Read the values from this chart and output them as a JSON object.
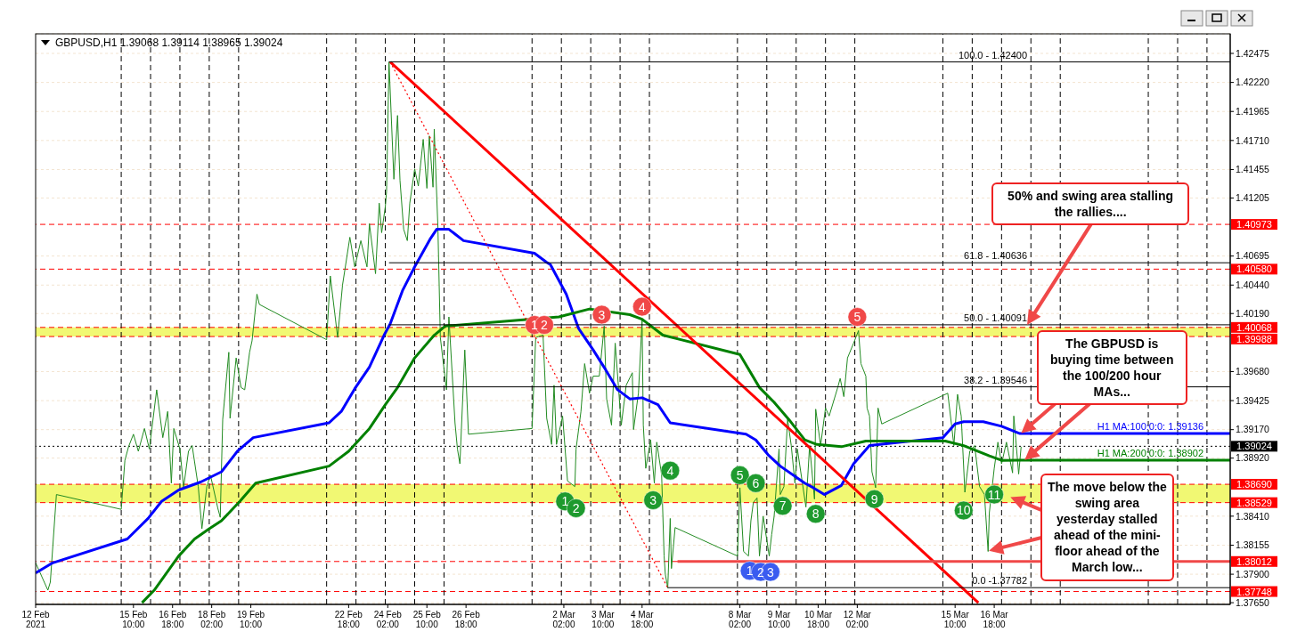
{
  "chart_data": {
    "type": "line",
    "title": "GBPUSD,H1 1.39068 1.39114 1.38965 1.39024",
    "annotations": [
      "50% and swing area stalling the rallies....",
      "The GBPUSD is buying time between the 100/200 hour MAs...",
      "The move below the swing area yesterday stalled ahead of the mini- floor ahead of the March low...",
      {
        "text": "1",
        "x": "2021-03-01T02:00",
        "y": 1.4009
      },
      {
        "text": "2",
        "x": "2021-03-01T10:00",
        "y": 1.4009
      },
      {
        "text": "3",
        "x": "2021-03-03T09:00",
        "y": 1.4018
      },
      {
        "text": "4",
        "x": "2021-03-04T18:00",
        "y": 1.4025
      },
      {
        "text": "5",
        "x": "2021-03-12T02:00",
        "y": 1.4016
      },
      {
        "text": "1",
        "x": "2021-03-02T03:00",
        "y": 1.3854
      },
      {
        "text": "2",
        "x": "2021-03-02T12:00",
        "y": 1.3848
      },
      {
        "text": "3",
        "x": "2021-03-05T03:00",
        "y": 1.3855
      },
      {
        "text": "4",
        "x": "2021-03-05T17:00",
        "y": 1.3881
      },
      {
        "text": "5",
        "x": "2021-03-08T02:00",
        "y": 1.3877
      },
      {
        "text": "6",
        "x": "2021-03-08T15:00",
        "y": 1.387
      },
      {
        "text": "7",
        "x": "2021-03-09T13:00",
        "y": 1.385
      },
      {
        "text": "8",
        "x": "2021-03-10T16:00",
        "y": 1.3843
      },
      {
        "text": "9",
        "x": "2021-03-12T16:00",
        "y": 1.3856
      },
      {
        "text": "10",
        "x": "2021-03-15T17:00",
        "y": 1.3846
      },
      {
        "text": "11",
        "x": "2021-03-16T18:00",
        "y": 1.386
      },
      {
        "text": "1",
        "x": "2021-03-08T10:00",
        "y": 1.3793
      },
      {
        "text": "2",
        "x": "2021-03-08T19:00",
        "y": 1.3792
      },
      {
        "text": "3",
        "x": "2021-03-09T03:00",
        "y": 1.3792
      }
    ],
    "xlim": [
      "2021-02-12T02:00",
      "2021-03-24T19:00"
    ],
    "xticks": [
      {
        "value": "2021-02-12T02:00",
        "label": "12 Feb 2021"
      },
      {
        "value": "2021-02-15T10:00",
        "label": "15 Feb 10:00"
      },
      {
        "value": "2021-02-16T18:00",
        "label": "16 Feb 18:00"
      },
      {
        "value": "2021-02-18T02:00",
        "label": "18 Feb 02:00"
      },
      {
        "value": "2021-02-19T10:00",
        "label": "19 Feb 10:00"
      },
      {
        "value": "2021-02-22T18:00",
        "label": "22 Feb 18:00"
      },
      {
        "value": "2021-02-24T02:00",
        "label": "24 Feb 02:00"
      },
      {
        "value": "2021-02-25T10:00",
        "label": "25 Feb 10:00"
      },
      {
        "value": "2021-02-26T18:00",
        "label": "26 Feb 18:00"
      },
      {
        "value": "2021-03-02T02:00",
        "label": "2 Mar 02:00"
      },
      {
        "value": "2021-03-03T10:00",
        "label": "3 Mar 10:00"
      },
      {
        "value": "2021-03-04T18:00",
        "label": "4 Mar 18:00"
      },
      {
        "value": "2021-03-08T02:00",
        "label": "8 Mar 02:00"
      },
      {
        "value": "2021-03-09T10:00",
        "label": "9 Mar 10:00"
      },
      {
        "value": "2021-03-10T18:00",
        "label": "10 Mar 18:00"
      },
      {
        "value": "2021-03-12T02:00",
        "label": "12 Mar 02:00"
      },
      {
        "value": "2021-03-15T10:00",
        "label": "15 Mar 10:00"
      },
      {
        "value": "2021-03-16T18:00",
        "label": "16 Mar 18:00"
      }
    ],
    "ylim": [
      1.37635,
      1.42647
    ],
    "yticks": [
      1.42475,
      {
        "value": 1.4222,
        "label": "1.42220"
      },
      1.41965,
      {
        "value": 1.4171,
        "label": "1.41710"
      },
      1.41455,
      1.41205,
      1.40695,
      {
        "value": 1.4044,
        "label": "1.40440"
      },
      {
        "value": 1.4019,
        "label": "1.40190"
      },
      {
        "value": 1.3968,
        "label": "1.39680"
      },
      1.39425,
      {
        "value": 1.3917,
        "label": "1.39170"
      },
      {
        "value": 1.3892,
        "label": "1.38920"
      },
      {
        "value": 1.3841,
        "label": "1.38410"
      },
      1.38155,
      {
        "value": 1.379,
        "label": "1.37900"
      },
      {
        "value": 1.3765,
        "label": "1.37650"
      }
    ],
    "grid": "y",
    "line_style": "solid",
    "series": [
      {
        "color": "#228b22",
        "x": [
          "2021-02-12T02:00",
          "2021-02-12T12:00",
          "2021-02-12T14:00",
          "2021-02-12T19:00",
          "2021-02-15T00:00",
          "2021-02-15T03:00",
          "2021-02-15T06:00",
          "2021-02-15T10:00",
          "2021-02-15T14:00",
          "2021-02-15T19:00",
          "2021-02-15T23:00",
          "2021-02-16T05:00",
          "2021-02-16T10:00",
          "2021-02-16T14:00",
          "2021-02-16T17:00",
          "2021-02-16T19:00",
          "2021-02-17T00:00",
          "2021-02-17T03:00",
          "2021-02-17T07:00",
          "2021-02-17T10:00",
          "2021-02-17T15:00",
          "2021-02-17T18:00",
          "2021-02-17T22:00",
          "2021-02-18T01:00",
          "2021-02-18T07:00",
          "2021-02-18T09:00",
          "2021-02-18T11:00",
          "2021-02-18T16:00",
          "2021-02-18T17:00",
          "2021-02-18T22:00",
          "2021-02-19T02:00",
          "2021-02-19T05:00",
          "2021-02-19T09:00",
          "2021-02-19T11:00",
          "2021-02-19T15:00",
          "2021-02-19T17:00",
          "2021-02-22T00:00",
          "2021-02-22T03:00",
          "2021-02-22T09:00",
          "2021-02-22T13:00",
          "2021-02-22T19:00",
          "2021-02-22T23:00",
          "2021-02-23T04:00",
          "2021-02-23T09:00",
          "2021-02-23T11:00",
          "2021-02-23T16:00",
          "2021-02-23T19:00",
          "2021-02-23T21:00",
          "2021-02-24T00:00",
          "2021-02-24T01:00",
          "2021-02-24T03:00",
          "2021-02-24T07:00",
          "2021-02-24T10:00",
          "2021-02-24T12:00",
          "2021-02-24T15:00",
          "2021-02-24T18:00",
          "2021-02-24T20:00",
          "2021-02-25T00:00",
          "2021-02-25T03:00",
          "2021-02-25T07:00",
          "2021-02-25T10:00",
          "2021-02-25T12:00",
          "2021-02-25T15:00",
          "2021-02-25T16:00",
          "2021-02-25T19:00",
          "2021-02-25T21:00",
          "2021-02-26T02:00",
          "2021-02-26T04:00",
          "2021-02-26T09:00",
          "2021-02-26T11:00",
          "2021-02-26T13:00",
          "2021-02-26T17:00",
          "2021-02-26T20:00",
          "2021-03-01T00:00",
          "2021-03-01T03:00",
          "2021-03-01T09:00",
          "2021-03-01T12:00",
          "2021-03-01T16:00",
          "2021-03-01T18:00",
          "2021-03-01T20:00",
          "2021-03-02T01:00",
          "2021-03-02T05:00",
          "2021-03-02T11:00",
          "2021-03-02T12:00",
          "2021-03-02T16:00",
          "2021-03-02T19:00",
          "2021-03-02T23:00",
          "2021-03-03T02:00",
          "2021-03-03T07:00",
          "2021-03-03T11:00",
          "2021-03-03T13:00",
          "2021-03-03T17:00",
          "2021-03-03T20:00",
          "2021-03-04T01:00",
          "2021-03-04T05:00",
          "2021-03-04T10:00",
          "2021-03-04T11:00",
          "2021-03-04T15:00",
          "2021-03-04T18:00",
          "2021-03-04T19:00",
          "2021-03-04T21:00",
          "2021-03-05T01:00",
          "2021-03-05T04:00",
          "2021-03-05T06:00",
          "2021-03-05T10:00",
          "2021-03-05T12:00",
          "2021-03-05T13:00",
          "2021-03-05T15:00",
          "2021-03-05T17:00",
          "2021-03-05T18:00",
          "2021-03-05T21:00",
          "2021-03-08T00:00",
          "2021-03-08T02:00",
          "2021-03-08T05:00",
          "2021-03-08T09:00",
          "2021-03-08T11:00",
          "2021-03-08T13:00",
          "2021-03-08T16:00",
          "2021-03-08T18:00",
          "2021-03-08T21:00",
          "2021-03-09T02:00",
          "2021-03-09T04:00",
          "2021-03-09T06:00",
          "2021-03-09T10:00",
          "2021-03-09T11:00",
          "2021-03-09T14:00",
          "2021-03-09T17:00",
          "2021-03-09T20:00",
          "2021-03-09T23:00",
          "2021-03-10T01:00",
          "2021-03-10T08:00",
          "2021-03-10T11:00",
          "2021-03-10T15:00",
          "2021-03-10T16:00",
          "2021-03-10T20:00",
          "2021-03-11T00:00",
          "2021-03-11T03:00",
          "2021-03-11T10:00",
          "2021-03-11T12:00",
          "2021-03-11T15:00",
          "2021-03-11T18:00",
          "2021-03-11T23:00",
          "2021-03-12T03:00",
          "2021-03-12T05:00",
          "2021-03-12T09:00",
          "2021-03-12T10:00",
          "2021-03-12T12:00",
          "2021-03-12T14:00",
          "2021-03-12T17:00",
          "2021-03-12T19:00",
          "2021-03-12T22:00",
          "2021-03-15T04:00",
          "2021-03-15T07:00",
          "2021-03-15T09:00",
          "2021-03-15T12:00",
          "2021-03-15T15:00",
          "2021-03-15T18:00",
          "2021-03-15T22:00",
          "2021-03-16T02:00",
          "2021-03-16T06:00",
          "2021-03-16T10:00",
          "2021-03-16T13:00",
          "2021-03-16T14:00",
          "2021-03-16T18:00",
          "2021-03-16T21:00",
          "2021-03-17T00:00",
          "2021-03-17T04:00",
          "2021-03-17T09:00",
          "2021-03-17T10:00",
          "2021-03-17T14:00",
          "2021-03-17T16:00"
        ],
        "values": [
          1.38,
          1.3776,
          1.3783,
          1.386,
          1.3847,
          1.389,
          1.3902,
          1.3913,
          1.3898,
          1.3918,
          1.39,
          1.3952,
          1.391,
          1.3933,
          1.387,
          1.3918,
          1.39,
          1.3866,
          1.3898,
          1.3903,
          1.3867,
          1.383,
          1.3867,
          1.3877,
          1.3848,
          1.384,
          1.3926,
          1.3985,
          1.3927,
          1.398,
          1.3954,
          1.3952,
          1.3985,
          1.3995,
          1.4036,
          1.4027,
          1.3996,
          1.4052,
          1.3998,
          1.4044,
          1.4086,
          1.406,
          1.4083,
          1.406,
          1.4098,
          1.4054,
          1.4116,
          1.409,
          1.4113,
          1.4126,
          1.424,
          1.4137,
          1.4193,
          1.4136,
          1.4093,
          1.4083,
          1.4116,
          1.4146,
          1.4131,
          1.4172,
          1.4129,
          1.4175,
          1.413,
          1.4181,
          1.4095,
          1.3998,
          1.3952,
          1.4016,
          1.3923,
          1.39,
          1.3887,
          1.3987,
          1.3913,
          1.3918,
          1.3998,
          1.4,
          1.3927,
          1.3904,
          1.3956,
          1.3904,
          1.3929,
          1.3872,
          1.3867,
          1.39,
          1.3933,
          1.3975,
          1.3949,
          1.3964,
          1.3964,
          1.4008,
          1.3944,
          1.3921,
          1.3993,
          1.3921,
          1.3956,
          1.3967,
          1.3917,
          1.3949,
          1.4013,
          1.3921,
          1.3883,
          1.3908,
          1.387,
          1.3906,
          1.3877,
          1.3806,
          1.379,
          1.3778,
          1.3839,
          1.3795,
          1.3831,
          1.3806,
          1.3866,
          1.381,
          1.3806,
          1.3837,
          1.3853,
          1.3857,
          1.3806,
          1.3841,
          1.3806,
          1.3825,
          1.3841,
          1.39,
          1.386,
          1.3867,
          1.3926,
          1.3903,
          1.387,
          1.39,
          1.3849,
          1.3903,
          1.3856,
          1.3935,
          1.3903,
          1.3936,
          1.3929,
          1.3954,
          1.3962,
          1.3946,
          1.398,
          1.3993,
          1.4004,
          1.3975,
          1.3964,
          1.3936,
          1.3929,
          1.388,
          1.3866,
          1.3936,
          1.3922,
          1.3949,
          1.3922,
          1.3903,
          1.3948,
          1.3929,
          1.3862,
          1.3898,
          1.3903,
          1.3867,
          1.386,
          1.381,
          1.3844,
          1.3883,
          1.3906,
          1.3887,
          1.3906,
          1.3879,
          1.3929,
          1.3878,
          1.3902
        ]
      },
      {
        "name": "H1 MA:100:0:0: 1.39136",
        "color": "#0000ff",
        "x": [
          "2021-02-12T02:00",
          "2021-02-12T16:00",
          "2021-02-15T05:00",
          "2021-02-15T22:00",
          "2021-02-16T09:00",
          "2021-02-16T23:00",
          "2021-02-17T17:00",
          "2021-02-18T10:00",
          "2021-02-18T23:00",
          "2021-02-19T12:00",
          "2021-02-22T02:00",
          "2021-02-22T12:00",
          "2021-02-22T23:00",
          "2021-02-23T11:00",
          "2021-02-23T23:00",
          "2021-02-24T04:00",
          "2021-02-24T14:00",
          "2021-02-25T00:00",
          "2021-02-25T13:00",
          "2021-02-25T18:00",
          "2021-02-26T04:00",
          "2021-02-26T16:00",
          "2021-03-01T02:00",
          "2021-03-01T12:00",
          "2021-03-01T15:00",
          "2021-03-02T04:00",
          "2021-03-02T14:00",
          "2021-03-03T02:00",
          "2021-03-03T12:00",
          "2021-03-03T22:00",
          "2021-03-04T08:00",
          "2021-03-04T18:00",
          "2021-03-05T07:00",
          "2021-03-05T17:00",
          "2021-03-08T07:00",
          "2021-03-08T15:00",
          "2021-03-09T01:00",
          "2021-03-09T11:00",
          "2021-03-10T07:00",
          "2021-03-10T14:00",
          "2021-03-10T23:00",
          "2021-03-11T13:00",
          "2021-03-11T23:00",
          "2021-03-12T12:00",
          "2021-03-15T00:00",
          "2021-03-15T10:00",
          "2021-03-15T17:00",
          "2021-03-16T09:00",
          "2021-03-17T00:00",
          "2021-03-17T15:00",
          "2021-03-24T19:00"
        ],
        "values": [
          1.3791,
          1.38,
          1.3821,
          1.3839,
          1.3854,
          1.3864,
          1.3871,
          1.388,
          1.3898,
          1.391,
          1.3923,
          1.3933,
          1.3953,
          1.3972,
          1.4,
          1.401,
          1.4039,
          1.406,
          1.4085,
          1.4093,
          1.4093,
          1.4083,
          1.4072,
          1.4064,
          1.4062,
          1.4036,
          1.4006,
          1.3987,
          1.397,
          1.3952,
          1.3944,
          1.3945,
          1.3939,
          1.3923,
          1.3913,
          1.3908,
          1.3895,
          1.3885,
          1.387,
          1.3866,
          1.386,
          1.3868,
          1.3887,
          1.3903,
          1.391,
          1.3922,
          1.3924,
          1.3924,
          1.392,
          1.39136,
          1.39136
        ]
      },
      {
        "name": "H1 MA:200:0:0: 1.38902",
        "color": "#008000",
        "x": [
          "2021-02-15T17:00",
          "2021-02-16T03:00",
          "2021-02-16T23:00",
          "2021-02-17T12:00",
          "2021-02-18T00:00",
          "2021-02-18T10:00",
          "2021-02-19T01:00",
          "2021-02-19T14:00",
          "2021-02-22T02:00",
          "2021-02-22T18:00",
          "2021-02-23T11:00",
          "2021-02-24T00:00",
          "2021-02-24T10:00",
          "2021-02-25T00:00",
          "2021-02-25T16:00",
          "2021-02-26T01:00",
          "2021-03-01T22:00",
          "2021-03-02T23:00",
          "2021-03-04T08:00",
          "2021-03-04T18:00",
          "2021-03-05T11:00",
          "2021-03-08T02:00",
          "2021-03-08T18:00",
          "2021-03-09T06:00",
          "2021-03-09T18:00",
          "2021-03-10T07:00",
          "2021-03-10T17:00",
          "2021-03-11T13:00",
          "2021-03-12T09:00",
          "2021-03-15T02:00",
          "2021-03-15T17:00",
          "2021-03-16T14:00",
          "2021-03-17T00:00",
          "2021-03-17T15:00",
          "2021-03-24T19:00"
        ],
        "values": [
          1.3765,
          1.3776,
          1.3806,
          1.3821,
          1.383,
          1.3837,
          1.3854,
          1.387,
          1.3885,
          1.3898,
          1.3918,
          1.3939,
          1.3954,
          1.398,
          1.4,
          1.4008,
          1.4016,
          1.4023,
          1.4018,
          1.4014,
          1.4,
          1.3983,
          1.3954,
          1.3941,
          1.3926,
          1.3908,
          1.3904,
          1.3902,
          1.3907,
          1.3907,
          1.3903,
          1.3894,
          1.389,
          1.38902,
          1.38902
        ]
      },
      {
        "color": "#ff0000",
        "x": [
          "2021-02-24T04:00",
          "2021-03-16T05:00"
        ],
        "values": [
          1.424,
          1.3765
        ]
      },
      {
        "color": "#ff0000",
        "line_style": "dotted",
        "x": [
          "2021-02-24T04:00",
          "2021-03-05T15:00"
        ],
        "values": [
          1.424,
          1.3778
        ]
      },
      {
        "color": "#f04848",
        "x": [
          "2021-03-05T23:00",
          "2021-03-24T19:00"
        ],
        "values": [
          1.38012,
          1.38012
        ]
      },
      {
        "name": "100.0 - 1.42400",
        "color": "#000000",
        "x": [
          "2021-02-24T03:00",
          "2021-03-24T19:00"
        ],
        "values": [
          1.424,
          1.424
        ]
      },
      {
        "name": "61.8 - 1.40636",
        "color": "#000000",
        "x": [
          "2021-02-24T03:00",
          "2021-03-24T19:00"
        ],
        "values": [
          1.40636,
          1.40636
        ]
      },
      {
        "name": "50.0 - 1.40091",
        "color": "#000000",
        "x": [
          "2021-02-24T03:00",
          "2021-03-24T19:00"
        ],
        "values": [
          1.40091,
          1.40091
        ]
      },
      {
        "name": "38.2 - 1.39546",
        "color": "#000000",
        "x": [
          "2021-02-24T03:00",
          "2021-03-24T19:00"
        ],
        "values": [
          1.39546,
          1.39546
        ]
      },
      {
        "name": "0.0 -1.37782",
        "color": "#000000",
        "x": [
          "2021-03-05T15:00",
          "2021-03-24T19:00"
        ],
        "values": [
          1.37782,
          1.37782
        ]
      },
      {
        "type": "scatter",
        "color": "#f04848",
        "marker": "circle",
        "x": [
          "2021-03-01T02:00",
          "2021-03-01T10:00",
          "2021-03-03T09:00",
          "2021-03-04T18:00",
          "2021-03-12T02:00"
        ],
        "values": [
          1.4009,
          1.4009,
          1.4018,
          1.4025,
          1.4016
        ]
      },
      {
        "type": "scatter",
        "color": "#1e9a2e",
        "marker": "circle",
        "x": [
          "2021-03-02T03:00",
          "2021-03-02T12:00",
          "2021-03-05T03:00",
          "2021-03-05T17:00",
          "2021-03-08T02:00",
          "2021-03-08T15:00",
          "2021-03-09T13:00",
          "2021-03-10T16:00",
          "2021-03-12T16:00",
          "2021-03-15T17:00",
          "2021-03-16T18:00"
        ],
        "values": [
          1.3854,
          1.3848,
          1.3855,
          1.3881,
          1.3877,
          1.387,
          1.385,
          1.3843,
          1.3856,
          1.3846,
          1.386
        ]
      },
      {
        "type": "scatter",
        "color": "#3a5cf0",
        "marker": "circle",
        "x": [
          "2021-03-08T10:00",
          "2021-03-08T19:00",
          "2021-03-09T03:00"
        ],
        "values": [
          1.3793,
          1.3792,
          1.3792
        ]
      }
    ],
    "bands": [
      {
        "axis": "y",
        "from": 1.39988,
        "to": 1.40068,
        "color": "#eef75a"
      },
      {
        "axis": "y",
        "from": 1.38529,
        "to": 1.3869,
        "color": "#eef75a"
      }
    ],
    "ref_lines": [
      {
        "axis": "y",
        "value": 1.40973,
        "label": "1.40973",
        "color": "#ff0000",
        "line_style": "dashed"
      },
      {
        "axis": "y",
        "value": 1.4058,
        "label": "1.40580",
        "color": "#ff0000",
        "line_style": "dashed"
      },
      {
        "axis": "y",
        "value": 1.40068,
        "label": "1.40068",
        "color": "#ff0000",
        "line_style": "dashed"
      },
      {
        "axis": "y",
        "value": 1.39988,
        "label": "1.39988",
        "color": "#ff0000",
        "line_style": "dashed"
      },
      {
        "axis": "y",
        "value": 1.3869,
        "label": "1.38690",
        "color": "#ff0000",
        "line_style": "dashed"
      },
      {
        "axis": "y",
        "value": 1.38529,
        "label": "1.38529",
        "color": "#ff0000",
        "line_style": "dashed"
      },
      {
        "axis": "y",
        "value": 1.38012,
        "label": "1.38012",
        "color": "#ff0000",
        "line_style": "dashed"
      },
      {
        "axis": "y",
        "value": 1.37748,
        "label": "1.37748",
        "color": "#ff0000",
        "line_style": "dashed"
      },
      {
        "axis": "y",
        "value": 1.39024,
        "label": "1.39024",
        "color": "#000000",
        "line_style": "dotted"
      },
      {
        "axis": "x",
        "value": "2021-02-15",
        "color": "#000000",
        "line_style": "dashed"
      },
      {
        "axis": "x",
        "value": "2021-02-16",
        "color": "#000000",
        "line_style": "dashed"
      },
      {
        "axis": "x",
        "value": "2021-02-17",
        "color": "#000000",
        "line_style": "dashed"
      },
      {
        "axis": "x",
        "value": "2021-02-18",
        "color": "#000000",
        "line_style": "dashed"
      },
      {
        "axis": "x",
        "value": "2021-02-19",
        "color": "#000000",
        "line_style": "dashed"
      },
      {
        "axis": "x",
        "value": "2021-02-22",
        "color": "#000000",
        "line_style": "dashed"
      },
      {
        "axis": "x",
        "value": "2021-02-23",
        "color": "#000000",
        "line_style": "dashed"
      },
      {
        "axis": "x",
        "value": "2021-02-24",
        "color": "#000000",
        "line_style": "dashed"
      },
      {
        "axis": "x",
        "value": "2021-02-25",
        "color": "#000000",
        "line_style": "dashed"
      },
      {
        "axis": "x",
        "value": "2021-02-26",
        "color": "#000000",
        "line_style": "dashed"
      },
      {
        "axis": "x",
        "value": "2021-03-01",
        "color": "#000000",
        "line_style": "dashed"
      },
      {
        "axis": "x",
        "value": "2021-03-02",
        "color": "#000000",
        "line_style": "dashed"
      },
      {
        "axis": "x",
        "value": "2021-03-03",
        "color": "#000000",
        "line_style": "dashed"
      },
      {
        "axis": "x",
        "value": "2021-03-04",
        "color": "#000000",
        "line_style": "dashed"
      },
      {
        "axis": "x",
        "value": "2021-03-05",
        "color": "#000000",
        "line_style": "dashed"
      },
      {
        "axis": "x",
        "value": "2021-03-08",
        "color": "#000000",
        "line_style": "dashed"
      },
      {
        "axis": "x",
        "value": "2021-03-09",
        "color": "#000000",
        "line_style": "dashed"
      },
      {
        "axis": "x",
        "value": "2021-03-10",
        "color": "#000000",
        "line_style": "dashed"
      },
      {
        "axis": "x",
        "value": "2021-03-11",
        "color": "#000000",
        "line_style": "dashed"
      },
      {
        "axis": "x",
        "value": "2021-03-12",
        "color": "#000000",
        "line_style": "dashed"
      },
      {
        "axis": "x",
        "value": "2021-03-15",
        "color": "#000000",
        "line_style": "dashed"
      },
      {
        "axis": "x",
        "value": "2021-03-16",
        "color": "#000000",
        "line_style": "dashed"
      },
      {
        "axis": "x",
        "value": "2021-03-17",
        "color": "#000000",
        "line_style": "dashed"
      },
      {
        "axis": "x",
        "value": "2021-03-18",
        "color": "#000000",
        "line_style": "dashed"
      },
      {
        "axis": "x",
        "value": "2021-03-19",
        "color": "#000000",
        "line_style": "dashed"
      },
      {
        "axis": "x",
        "value": "2021-03-22",
        "color": "#000000",
        "line_style": "dashed"
      },
      {
        "axis": "x",
        "value": "2021-03-23",
        "color": "#000000",
        "line_style": "dashed"
      },
      {
        "axis": "x",
        "value": "2021-03-24",
        "color": "#000000",
        "line_style": "dashed"
      }
    ]
  }
}
